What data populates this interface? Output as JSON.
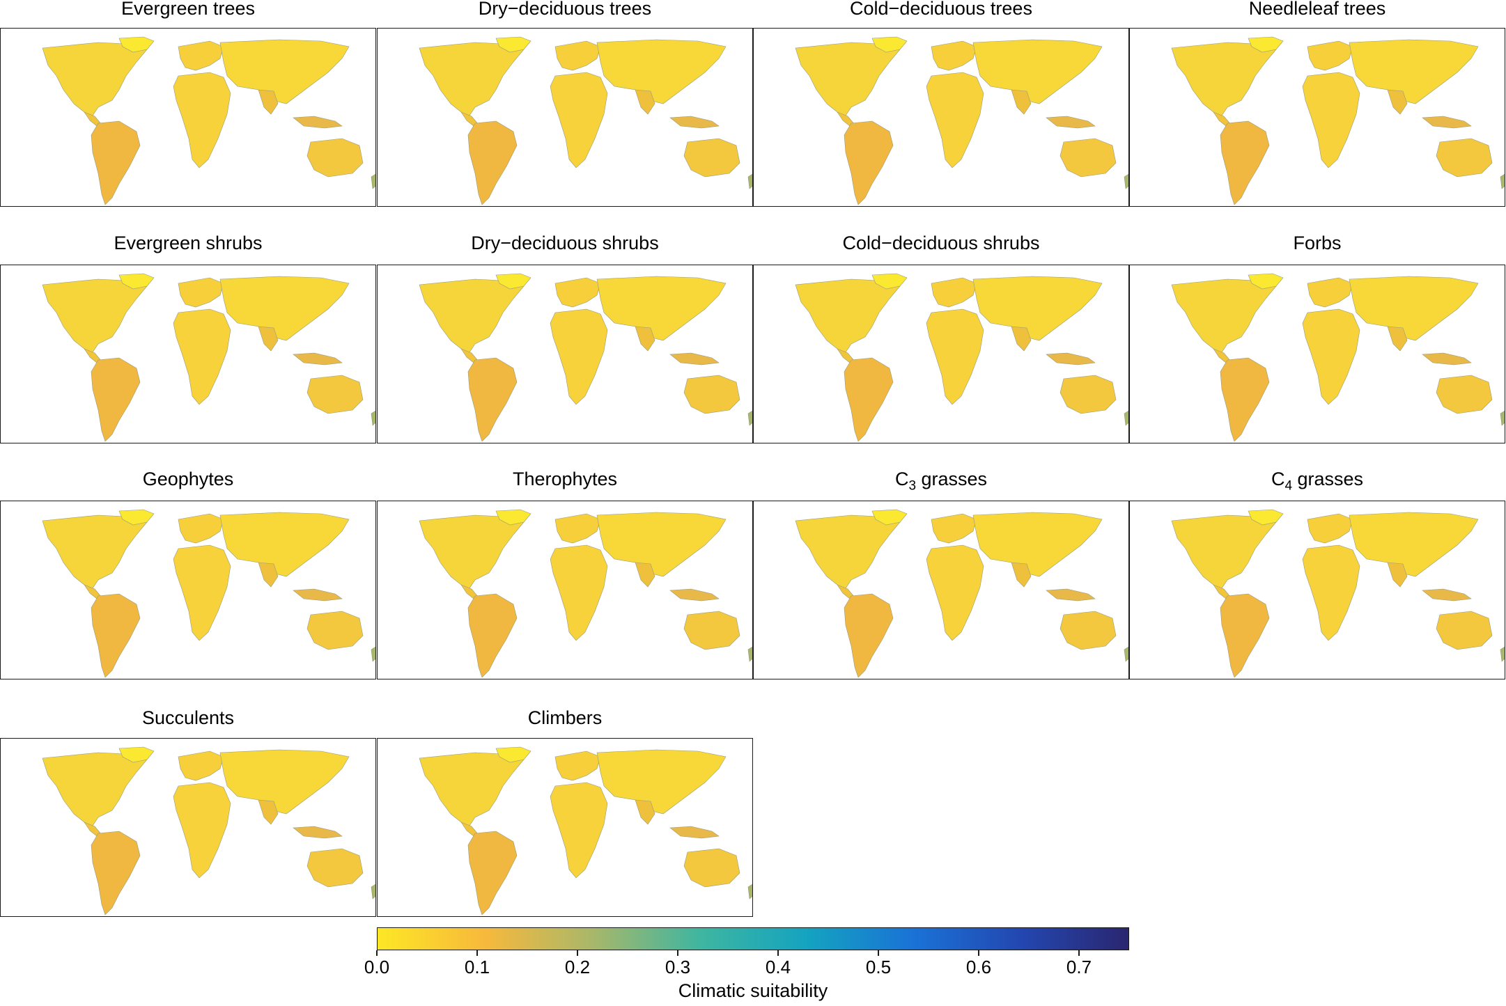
{
  "panels": [
    {
      "title": "Evergreen trees",
      "sub": "",
      "title_after": ""
    },
    {
      "title": "Dry−deciduous trees",
      "sub": "",
      "title_after": ""
    },
    {
      "title": "Cold−deciduous trees",
      "sub": "",
      "title_after": ""
    },
    {
      "title": "Needleleaf trees",
      "sub": "",
      "title_after": ""
    },
    {
      "title": "Evergreen shrubs",
      "sub": "",
      "title_after": ""
    },
    {
      "title": "Dry−deciduous shrubs",
      "sub": "",
      "title_after": ""
    },
    {
      "title": "Cold−deciduous shrubs",
      "sub": "",
      "title_after": ""
    },
    {
      "title": "Forbs",
      "sub": "",
      "title_after": ""
    },
    {
      "title": "Geophytes",
      "sub": "",
      "title_after": ""
    },
    {
      "title": "Therophytes",
      "sub": "",
      "title_after": ""
    },
    {
      "title": "C",
      "sub": "3",
      "title_after": " grasses"
    },
    {
      "title": "C",
      "sub": "4",
      "title_after": " grasses"
    },
    {
      "title": "Succulents",
      "sub": "",
      "title_after": ""
    },
    {
      "title": "Climbers",
      "sub": "",
      "title_after": ""
    }
  ],
  "colorbar": {
    "title": "Climatic suitability",
    "min": 0.0,
    "max": 0.75,
    "ticks": [
      "0.0",
      "0.1",
      "0.2",
      "0.3",
      "0.4",
      "0.5",
      "0.6",
      "0.7"
    ],
    "tick_values": [
      0.0,
      0.1,
      0.2,
      0.3,
      0.4,
      0.5,
      0.6,
      0.7
    ],
    "colors": [
      "#fde725",
      "#f7b93c",
      "#a9b76a",
      "#3fb6a0",
      "#14a3c0",
      "#1a72d6",
      "#2347b0",
      "#2a2670"
    ]
  }
}
